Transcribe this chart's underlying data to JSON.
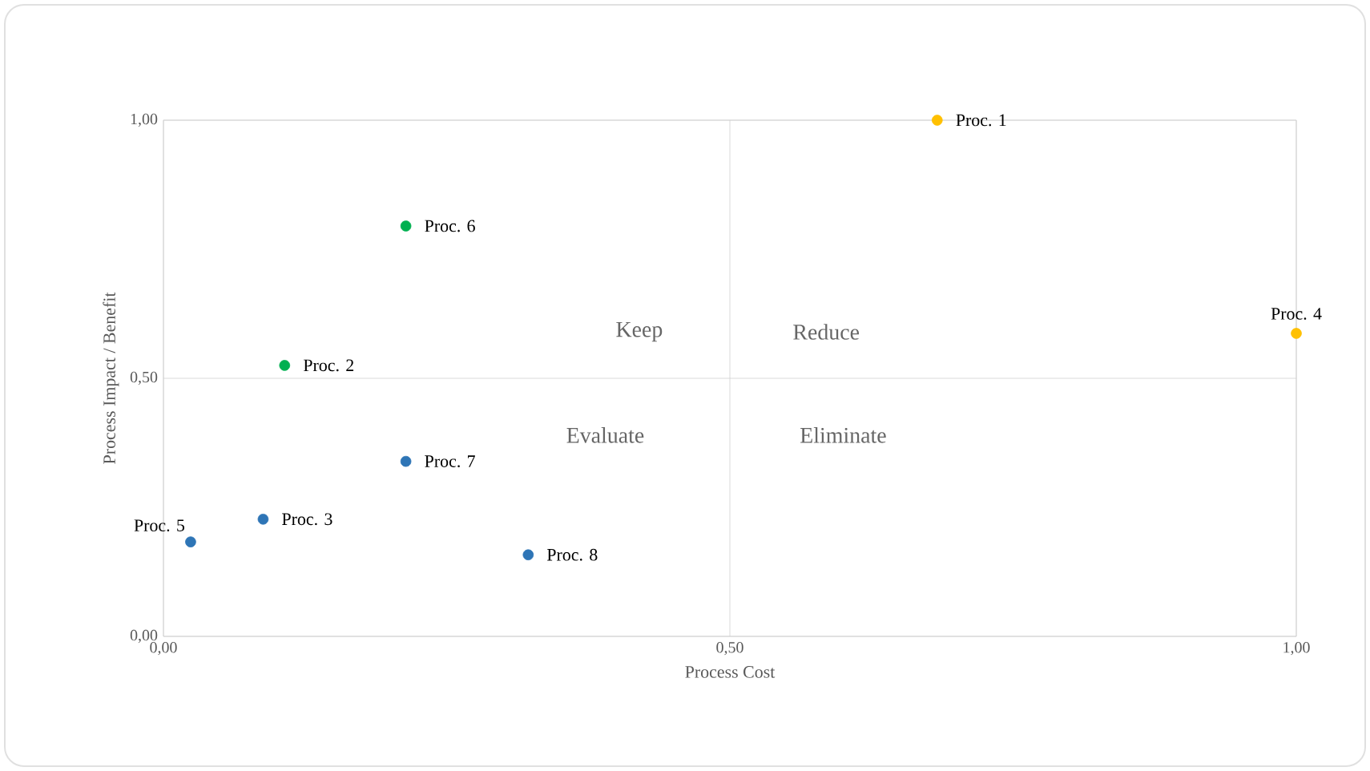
{
  "chart_data": {
    "type": "scatter",
    "xlabel": "Process Cost",
    "ylabel": "Process Impact / Benefit",
    "xlim": [
      0,
      1
    ],
    "ylim": [
      0,
      1
    ],
    "xticks": [
      {
        "value": 0,
        "label": "0,00"
      },
      {
        "value": 0.5,
        "label": "0,50"
      },
      {
        "value": 1,
        "label": "1,00"
      }
    ],
    "yticks": [
      {
        "value": 0,
        "label": "0,00"
      },
      {
        "value": 0.5,
        "label": "0,50"
      },
      {
        "value": 1,
        "label": "1,00"
      }
    ],
    "grid": true,
    "marker": "circle",
    "series": [
      {
        "color": "#ffc000",
        "x": [
          0.683,
          1.0
        ],
        "values": [
          1.0,
          0.587
        ]
      },
      {
        "color": "#00b050",
        "x": [
          0.214,
          0.107
        ],
        "values": [
          0.795,
          0.525
        ]
      },
      {
        "color": "#2e75b6",
        "x": [
          0.214,
          0.088,
          0.024,
          0.322
        ],
        "values": [
          0.339,
          0.227,
          0.183,
          0.158
        ]
      }
    ],
    "annotations": [
      "Keep",
      "Reduce",
      "Evaluate",
      "Eliminate",
      {
        "text": "Proc. 1",
        "x": 0.683,
        "y": 1.0
      },
      {
        "text": "Proc. 4",
        "x": 1.0,
        "y": 0.587
      },
      {
        "text": "Proc. 6",
        "x": 0.214,
        "y": 0.795
      },
      {
        "text": "Proc. 2",
        "x": 0.107,
        "y": 0.525
      },
      {
        "text": "Proc. 7",
        "x": 0.214,
        "y": 0.339
      },
      {
        "text": "Proc. 3",
        "x": 0.088,
        "y": 0.227
      },
      {
        "text": "Proc. 5",
        "x": 0.024,
        "y": 0.183
      },
      {
        "text": "Proc. 8",
        "x": 0.322,
        "y": 0.158
      }
    ]
  }
}
